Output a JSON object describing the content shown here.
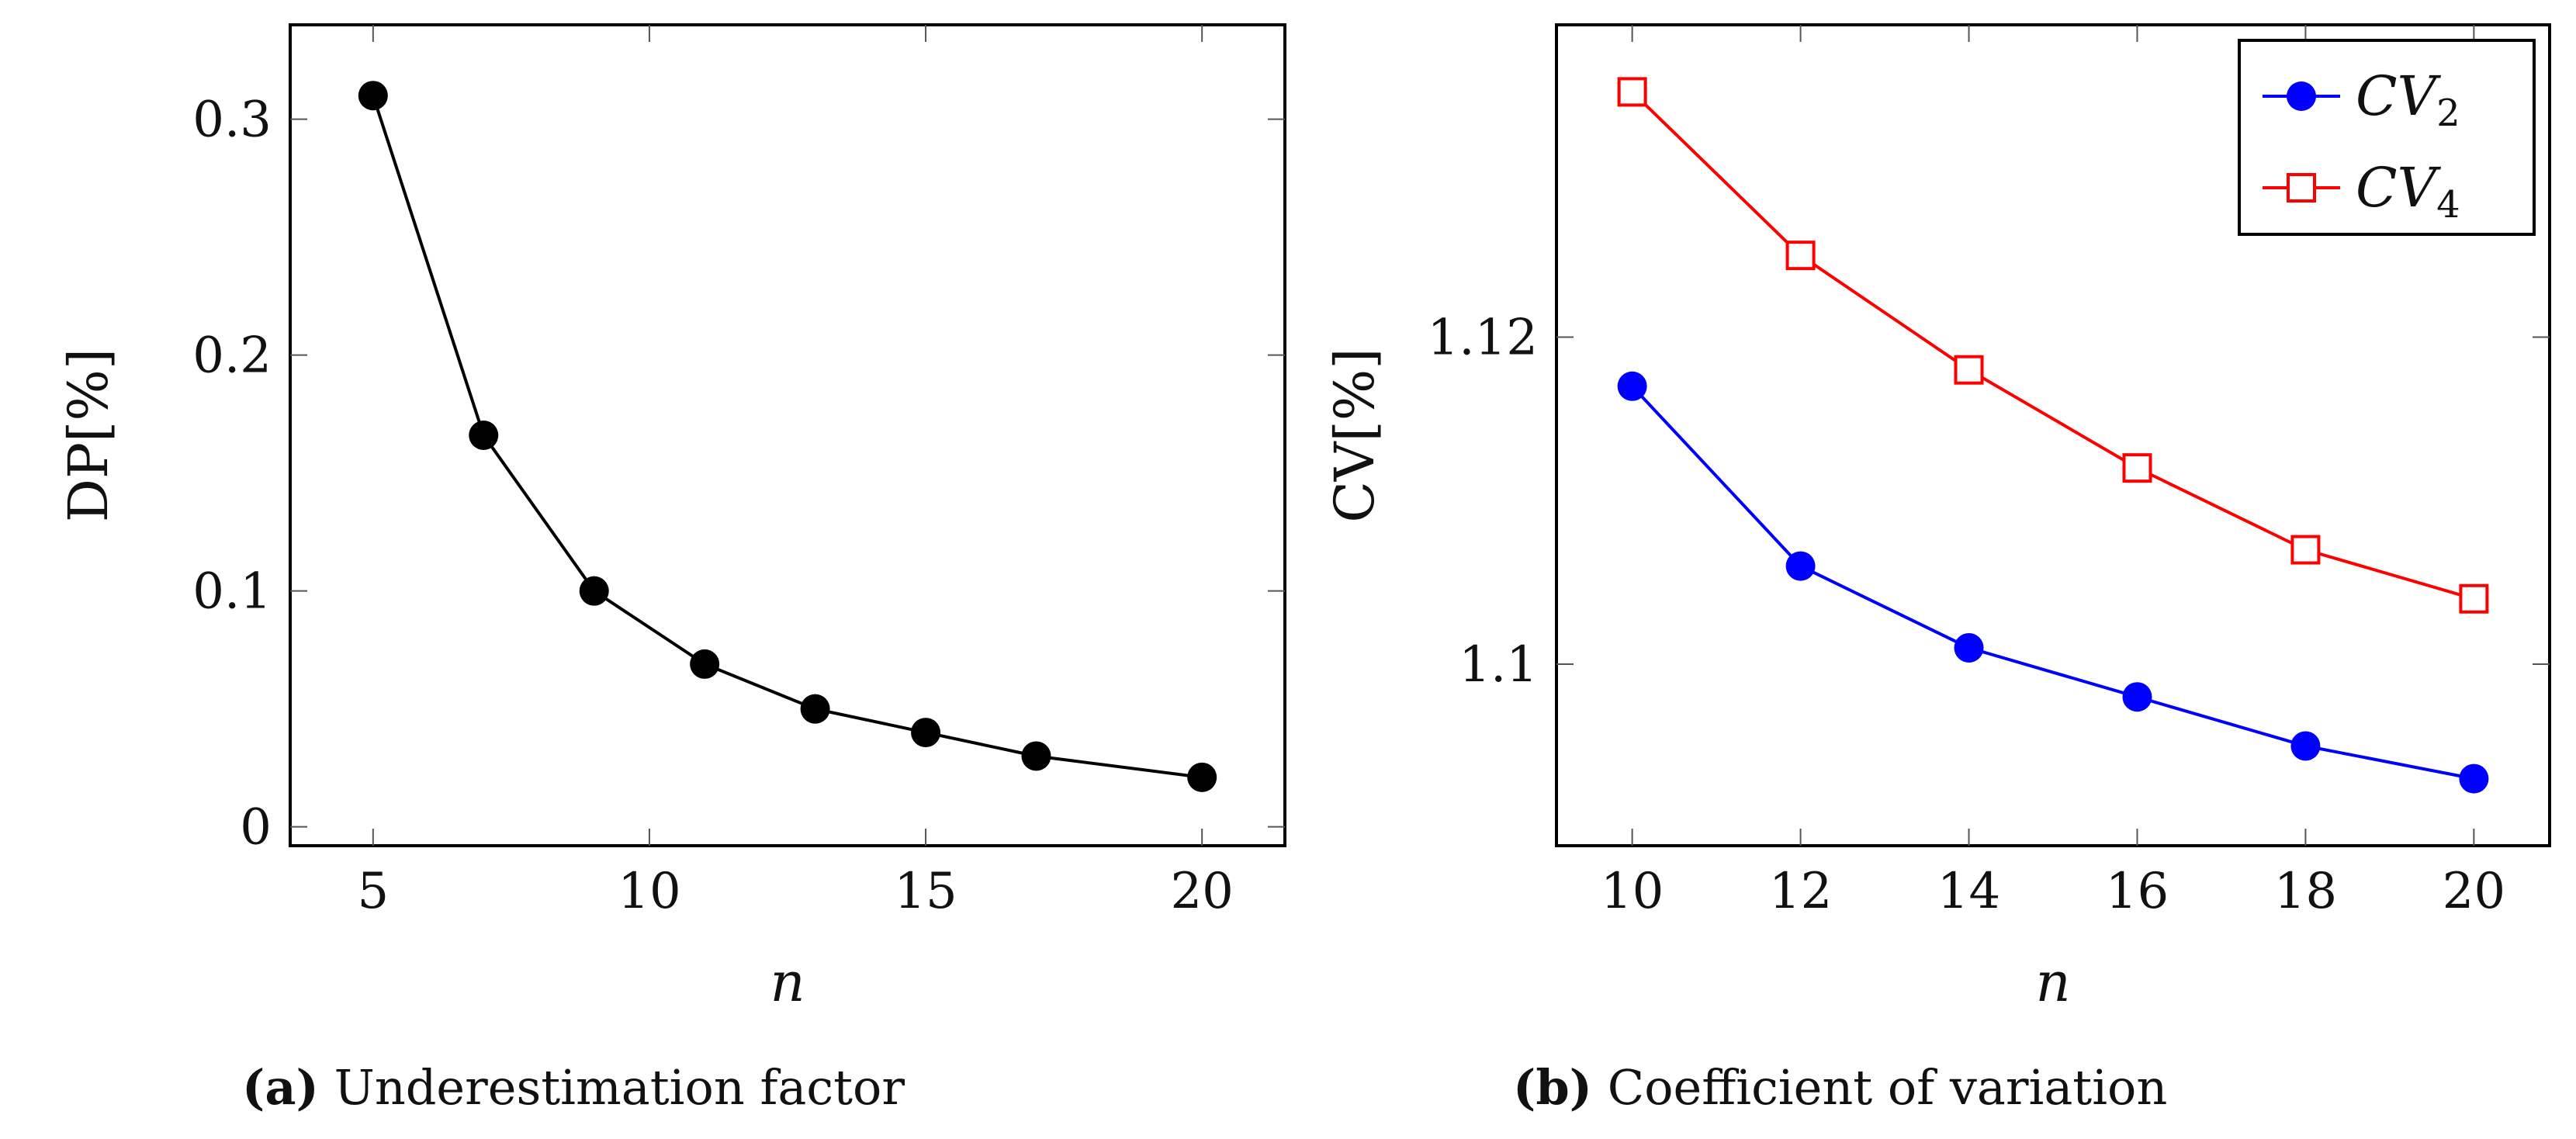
{
  "chart_data": [
    {
      "type": "line",
      "title": "",
      "xlabel": "n",
      "ylabel": "DP[%]",
      "xlim": [
        3.5,
        21.5
      ],
      "ylim": [
        -0.008,
        0.34
      ],
      "xticks": [
        5,
        10,
        15,
        20
      ],
      "yticks": [
        0,
        0.1,
        0.2,
        0.3
      ],
      "ytick_labels": [
        "0",
        "0.1",
        "0.2",
        "0.3"
      ],
      "grid": false,
      "series": [
        {
          "name": "DP",
          "color": "#000000",
          "marker": "filled-circle",
          "x": [
            5,
            7,
            9,
            11,
            13,
            15,
            17,
            20
          ],
          "values": [
            0.31,
            0.166,
            0.1,
            0.069,
            0.05,
            0.04,
            0.03,
            0.021
          ]
        }
      ],
      "caption_prefix": "(a)",
      "caption": "Underestimation factor"
    },
    {
      "type": "line",
      "title": "",
      "xlabel": "n",
      "ylabel": "CV[%]",
      "xlim": [
        9.1,
        20.9
      ],
      "ylim": [
        1.0889,
        1.1391
      ],
      "xticks": [
        10,
        12,
        14,
        16,
        18,
        20
      ],
      "yticks": [
        1.1,
        1.12
      ],
      "ytick_labels": [
        "1.1",
        "1.12"
      ],
      "grid": false,
      "legend_position": "top-right",
      "series": [
        {
          "name": "CV",
          "subscript": "2",
          "color": "#0000ff",
          "marker": "filled-circle",
          "x": [
            10,
            12,
            14,
            16,
            18,
            20
          ],
          "values": [
            1.117,
            1.106,
            1.101,
            1.098,
            1.095,
            1.093
          ]
        },
        {
          "name": "CV",
          "subscript": "4",
          "color": "#ff0000",
          "marker": "open-square",
          "x": [
            10,
            12,
            14,
            16,
            18,
            20
          ],
          "values": [
            1.135,
            1.125,
            1.118,
            1.112,
            1.107,
            1.104
          ]
        }
      ],
      "caption_prefix": "(b)",
      "caption": "Coefficient of variation"
    }
  ]
}
